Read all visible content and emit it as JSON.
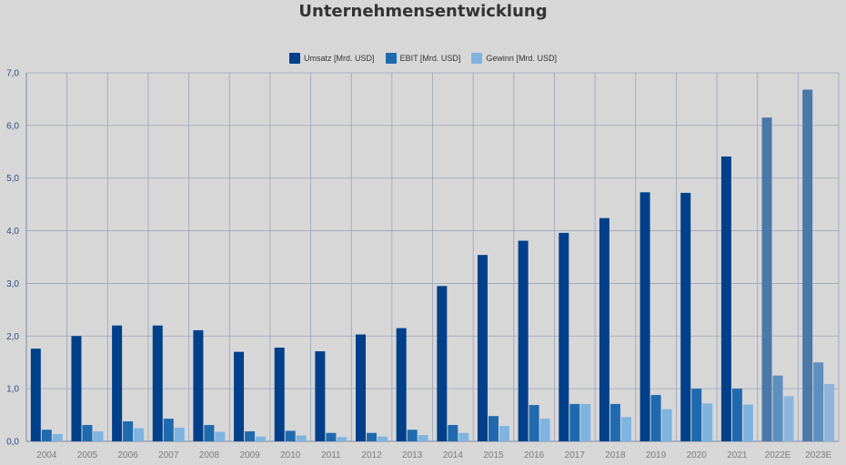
{
  "chart_data": {
    "type": "bar",
    "title": "Unternehmensentwicklung",
    "xlabel": "",
    "ylabel": "",
    "ylim": [
      0,
      7
    ],
    "yticks": [
      "0,0",
      "1,0",
      "2,0",
      "3,0",
      "4,0",
      "5,0",
      "6,0",
      "7,0"
    ],
    "categories": [
      "2004",
      "2005",
      "2006",
      "2007",
      "2008",
      "2009",
      "2010",
      "2011",
      "2012",
      "2013",
      "2014",
      "2015",
      "2016",
      "2017",
      "2018",
      "2019",
      "2020",
      "2021",
      "2022E",
      "2023E"
    ],
    "grid": true,
    "legend_position": "top-center",
    "series": [
      {
        "name": "Umsatz [Mrd. USD]",
        "color": "#003f8a",
        "values": [
          1.76,
          2.0,
          2.2,
          2.2,
          2.11,
          1.7,
          1.78,
          1.71,
          2.03,
          2.15,
          2.95,
          3.54,
          3.81,
          3.96,
          4.24,
          4.73,
          4.72,
          5.41,
          6.15,
          6.68
        ]
      },
      {
        "name": "EBIT [Mrd. USD]",
        "color": "#1f6aae",
        "values": [
          0.22,
          0.31,
          0.38,
          0.43,
          0.31,
          0.19,
          0.2,
          0.16,
          0.16,
          0.22,
          0.31,
          0.48,
          0.69,
          0.71,
          0.71,
          0.88,
          1.0,
          1.0,
          1.25,
          1.5
        ]
      },
      {
        "name": "Gewinn [Mrd. USD]",
        "color": "#7fb3e0",
        "values": [
          0.14,
          0.19,
          0.25,
          0.26,
          0.18,
          0.09,
          0.11,
          0.08,
          0.09,
          0.12,
          0.16,
          0.29,
          0.43,
          0.71,
          0.46,
          0.61,
          0.72,
          0.7,
          0.86,
          1.09
        ]
      }
    ],
    "estimate_colors": [
      "#4a78a8",
      "#5d8fbf",
      "#8cb7db"
    ],
    "estimate_categories": [
      "2022E",
      "2023E"
    ]
  }
}
